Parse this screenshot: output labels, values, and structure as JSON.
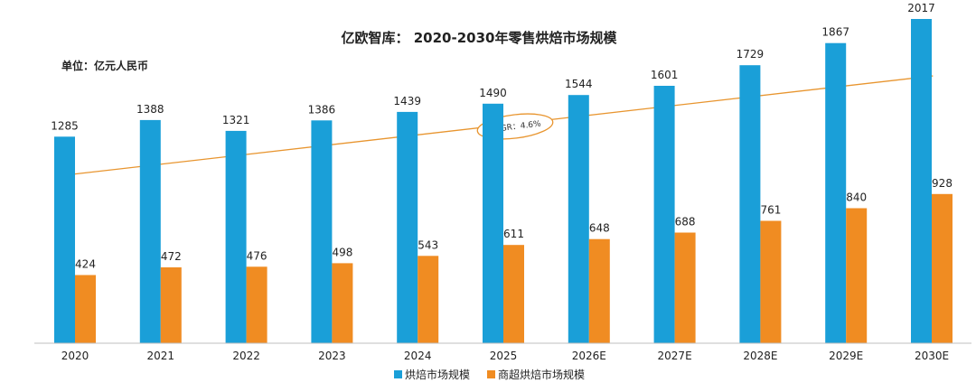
{
  "chart_data": {
    "type": "bar",
    "title": "亿欧智库：  2020-2030年零售烘焙市场规模",
    "unit_label": "单位：亿元人民币",
    "categories": [
      "2020",
      "2021",
      "2022",
      "2023",
      "2024",
      "2025",
      "2026E",
      "2027E",
      "2028E",
      "2029E",
      "2030E"
    ],
    "series": [
      {
        "name": "烘焙市场规模",
        "color": "#1a9fd8",
        "values": [
          1285,
          1388,
          1321,
          1386,
          1439,
          1490,
          1544,
          1601,
          1729,
          1867,
          2017
        ]
      },
      {
        "name": "商超烘焙市场规模",
        "color": "#f08c22",
        "values": [
          424,
          472,
          476,
          498,
          543,
          611,
          648,
          688,
          761,
          840,
          928
        ]
      }
    ],
    "annotation": "CAGR：4.6%",
    "trend_color": "#e8952f",
    "legend_position": "bottom",
    "grid": false
  }
}
